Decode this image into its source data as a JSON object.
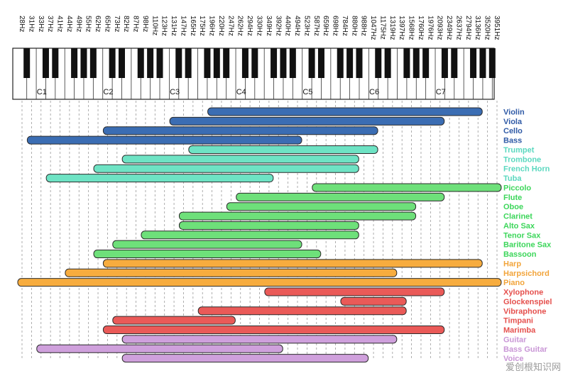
{
  "chart_data": {
    "type": "range-bar",
    "frequency_labels": [
      "28Hz",
      "31Hz",
      "33Hz",
      "37Hz",
      "41Hz",
      "44Hz",
      "49Hz",
      "55Hz",
      "62Hz",
      "65Hz",
      "73Hz",
      "82Hz",
      "87Hz",
      "98Hz",
      "110Hz",
      "123Hz",
      "131Hz",
      "147Hz",
      "165Hz",
      "175Hz",
      "196Hz",
      "220Hz",
      "247Hz",
      "262Hz",
      "294Hz",
      "330Hz",
      "349Hz",
      "392Hz",
      "440Hz",
      "494Hz",
      "523Hz",
      "587Hz",
      "659Hz",
      "698Hz",
      "784Hz",
      "880Hz",
      "988Hz",
      "1047Hz",
      "1175Hz",
      "1319Hz",
      "1397Hz",
      "1568Hz",
      "1760Hz",
      "1976Hz",
      "2093Hz",
      "2349Hz",
      "2637Hz",
      "2794Hz",
      "3136Hz",
      "3520Hz",
      "3951Hz"
    ],
    "octave_labels": [
      {
        "label": "C1",
        "key": 0
      },
      {
        "label": "C2",
        "key": 7
      },
      {
        "label": "C3",
        "key": 14
      },
      {
        "label": "C4",
        "key": 21
      },
      {
        "label": "C5",
        "key": 28
      },
      {
        "label": "C6",
        "key": 35
      },
      {
        "label": "C7",
        "key": 42
      }
    ],
    "colors": {
      "strings": "#3b6db3",
      "brass": "#6ee3c4",
      "woodwinds": "#6ee07a",
      "keyboards": "#f7ac3e",
      "percussion": "#ea5a58",
      "guitars": "#cfa0dc"
    },
    "label_colors": {
      "strings": "#2f5aa6",
      "brass": "#5ad8bf",
      "woodwinds": "#3cd65a",
      "keyboards": "#f2a43a",
      "percussion": "#e5504d",
      "guitars": "#c996d6"
    },
    "instruments": [
      {
        "name": "Violin",
        "group": "strings",
        "low": "196Hz",
        "high": "3136Hz"
      },
      {
        "name": "Viola",
        "group": "strings",
        "low": "131Hz",
        "high": "2093Hz"
      },
      {
        "name": "Cello",
        "group": "strings",
        "low": "65Hz",
        "high": "1047Hz"
      },
      {
        "name": "Bass",
        "group": "strings",
        "low": "31Hz",
        "high": "494Hz"
      },
      {
        "name": "Trumpet",
        "group": "brass",
        "low": "165Hz",
        "high": "1047Hz"
      },
      {
        "name": "Trombone",
        "group": "brass",
        "low": "82Hz",
        "high": "880Hz"
      },
      {
        "name": "French Horn",
        "group": "brass",
        "low": "62Hz",
        "high": "880Hz"
      },
      {
        "name": "Tuba",
        "group": "brass",
        "low": "37Hz",
        "high": "349Hz"
      },
      {
        "name": "Piccolo",
        "group": "woodwinds",
        "low": "587Hz",
        "high": "3951Hz"
      },
      {
        "name": "Flute",
        "group": "woodwinds",
        "low": "262Hz",
        "high": "2093Hz"
      },
      {
        "name": "Oboe",
        "group": "woodwinds",
        "low": "247Hz",
        "high": "1568Hz"
      },
      {
        "name": "Clarinet",
        "group": "woodwinds",
        "low": "147Hz",
        "high": "1568Hz"
      },
      {
        "name": "Alto Sax",
        "group": "woodwinds",
        "low": "147Hz",
        "high": "880Hz"
      },
      {
        "name": "Tenor Sax",
        "group": "woodwinds",
        "low": "98Hz",
        "high": "880Hz"
      },
      {
        "name": "Baritone Sax",
        "group": "woodwinds",
        "low": "73Hz",
        "high": "494Hz"
      },
      {
        "name": "Bassoon",
        "group": "woodwinds",
        "low": "62Hz",
        "high": "587Hz"
      },
      {
        "name": "Harp",
        "group": "keyboards",
        "low": "65Hz",
        "high": "3136Hz"
      },
      {
        "name": "Harpsichord",
        "group": "keyboards",
        "low": "44Hz",
        "high": "1319Hz"
      },
      {
        "name": "Piano",
        "group": "keyboards",
        "low": "28Hz",
        "high": "3951Hz"
      },
      {
        "name": "Xylophone",
        "group": "percussion",
        "low": "349Hz",
        "high": "2093Hz"
      },
      {
        "name": "Glockenspiel",
        "group": "percussion",
        "low": "784Hz",
        "high": "1397Hz"
      },
      {
        "name": "Vibraphone",
        "group": "percussion",
        "low": "175Hz",
        "high": "1397Hz"
      },
      {
        "name": "Timpani",
        "group": "percussion",
        "low": "73Hz",
        "high": "247Hz"
      },
      {
        "name": "Marimba",
        "group": "percussion",
        "low": "65Hz",
        "high": "2093Hz"
      },
      {
        "name": "Guitar",
        "group": "guitars",
        "low": "82Hz",
        "high": "1319Hz"
      },
      {
        "name": "Bass Guitar",
        "group": "guitars",
        "low": "33Hz",
        "high": "392Hz"
      },
      {
        "name": "Voice",
        "group": "guitars",
        "low": "82Hz",
        "high": "988Hz"
      }
    ],
    "grid": true
  },
  "watermark": "爱创根知识网"
}
